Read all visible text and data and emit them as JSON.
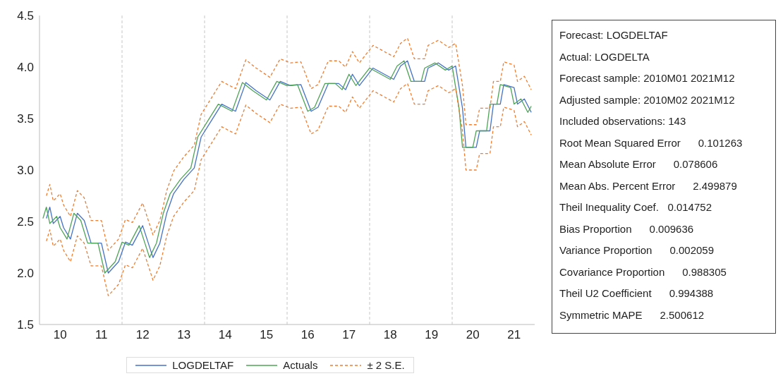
{
  "chart_data": [
    {
      "type": "line",
      "xlim": [
        "2010-01",
        "2022-01"
      ],
      "xticks": [
        {
          "value": "2010-07",
          "label": "10"
        },
        {
          "value": "2011-07",
          "label": "11"
        },
        {
          "value": "2012-07",
          "label": "12"
        },
        {
          "value": "2013-07",
          "label": "13"
        },
        {
          "value": "2014-07",
          "label": "14"
        },
        {
          "value": "2015-07",
          "label": "15"
        },
        {
          "value": "2016-07",
          "label": "16"
        },
        {
          "value": "2017-07",
          "label": "17"
        },
        {
          "value": "2018-07",
          "label": "18"
        },
        {
          "value": "2019-07",
          "label": "19"
        },
        {
          "value": "2020-07",
          "label": "20"
        },
        {
          "value": "2021-07",
          "label": "21"
        }
      ],
      "ylim": [
        1.5,
        4.5
      ],
      "yticks": [
        1.5,
        {
          "value": 2,
          "label": "2.0"
        },
        2.5,
        {
          "value": 3,
          "label": "3.0"
        },
        3.5,
        {
          "value": 4,
          "label": "4.0"
        },
        4.5
      ],
      "grid": false,
      "legend": "bottom",
      "marker": "none",
      "ref_lines": [
        {
          "axis": "x",
          "value": "2012-01",
          "label": null,
          "color": "#d9d9d9",
          "line_style": "dashed"
        },
        {
          "axis": "x",
          "value": "2014-01",
          "label": null,
          "color": "#d9d9d9",
          "line_style": "dashed"
        },
        {
          "axis": "x",
          "value": "2016-01",
          "label": null,
          "color": "#d9d9d9",
          "line_style": "dashed"
        },
        {
          "axis": "x",
          "value": "2018-01",
          "label": null,
          "color": "#d9d9d9",
          "line_style": "dashed"
        },
        {
          "axis": "x",
          "value": "2020-01",
          "label": null,
          "color": "#d9d9d9",
          "line_style": "dashed"
        }
      ],
      "series": [
        {
          "name": "LOGDELTAF",
          "color": "#4472c4",
          "line_style": "solid",
          "x": [
            "2010-03",
            "2010-04",
            "2010-05",
            "2010-07",
            "2010-08",
            "2010-10",
            "2010-12",
            "2011-02",
            "2011-04",
            "2011-07",
            "2011-09",
            "2011-12",
            "2012-02",
            "2012-04",
            "2012-07",
            "2012-10",
            "2012-12",
            "2013-02",
            "2013-04",
            "2013-07",
            "2013-10",
            "2013-12",
            "2014-03",
            "2014-06",
            "2014-10",
            "2015-01",
            "2015-04",
            "2015-08",
            "2015-11",
            "2016-02",
            "2016-05",
            "2016-08",
            "2016-10",
            "2017-01",
            "2017-04",
            "2017-06",
            "2017-08",
            "2017-10",
            "2018-02",
            "2018-08",
            "2018-10",
            "2018-12",
            "2019-02",
            "2019-05",
            "2019-06",
            "2019-09",
            "2019-12",
            "2020-02",
            "2020-04",
            "2020-05",
            "2020-08",
            "2020-09",
            "2020-12",
            "2021-01",
            "2021-03",
            "2021-04",
            "2021-07",
            "2021-08",
            "2021-10",
            "2021-12"
          ],
          "values": [
            2.53,
            2.64,
            2.48,
            2.55,
            2.44,
            2.33,
            2.58,
            2.51,
            2.29,
            2.29,
            2.0,
            2.11,
            2.3,
            2.27,
            2.46,
            2.15,
            2.29,
            2.58,
            2.77,
            2.91,
            3.02,
            3.32,
            3.48,
            3.64,
            3.57,
            3.85,
            3.77,
            3.68,
            3.86,
            3.82,
            3.83,
            3.57,
            3.61,
            3.84,
            3.84,
            3.78,
            3.93,
            3.82,
            3.99,
            3.88,
            4.01,
            4.06,
            3.86,
            3.86,
            3.99,
            4.04,
            3.97,
            4.01,
            3.6,
            3.22,
            3.22,
            3.38,
            3.38,
            3.64,
            3.64,
            3.83,
            3.8,
            3.64,
            3.69,
            3.56
          ]
        },
        {
          "name": "Actuals",
          "color": "#4ea456",
          "line_style": "solid",
          "x": [
            "2010-02",
            "2010-03",
            "2010-04",
            "2010-06",
            "2010-07",
            "2010-09",
            "2010-11",
            "2011-01",
            "2011-03",
            "2011-06",
            "2011-08",
            "2011-11",
            "2012-01",
            "2012-03",
            "2012-06",
            "2012-09",
            "2012-11",
            "2013-01",
            "2013-03",
            "2013-06",
            "2013-09",
            "2013-11",
            "2014-02",
            "2014-05",
            "2014-09",
            "2014-12",
            "2015-03",
            "2015-07",
            "2015-10",
            "2016-01",
            "2016-04",
            "2016-07",
            "2016-09",
            "2016-12",
            "2017-03",
            "2017-05",
            "2017-07",
            "2017-09",
            "2018-01",
            "2018-07",
            "2018-09",
            "2018-11",
            "2019-01",
            "2019-04",
            "2019-05",
            "2019-08",
            "2019-11",
            "2020-01",
            "2020-03",
            "2020-04",
            "2020-07",
            "2020-08",
            "2020-11",
            "2020-12",
            "2021-02",
            "2021-03",
            "2021-06",
            "2021-07",
            "2021-09",
            "2021-11",
            "2021-12"
          ],
          "values": [
            2.53,
            2.64,
            2.48,
            2.55,
            2.44,
            2.33,
            2.58,
            2.51,
            2.29,
            2.29,
            2.0,
            2.11,
            2.3,
            2.27,
            2.46,
            2.15,
            2.29,
            2.58,
            2.77,
            2.91,
            3.02,
            3.32,
            3.48,
            3.64,
            3.57,
            3.85,
            3.77,
            3.68,
            3.86,
            3.82,
            3.83,
            3.57,
            3.61,
            3.84,
            3.84,
            3.78,
            3.93,
            3.82,
            3.99,
            3.88,
            4.01,
            4.06,
            3.86,
            3.86,
            3.99,
            4.04,
            3.97,
            4.01,
            3.6,
            3.22,
            3.22,
            3.38,
            3.38,
            3.64,
            3.64,
            3.83,
            3.8,
            3.64,
            3.69,
            3.56,
            3.62
          ]
        },
        {
          "name": "± 2 S.E.",
          "color": "#ed7d31",
          "line_style": "dashed",
          "x": [
            "2010-03",
            "2010-04",
            "2010-05",
            "2010-07",
            "2010-08",
            "2010-10",
            "2010-12",
            "2011-02",
            "2011-04",
            "2011-07",
            "2011-09",
            "2011-12",
            "2012-02",
            "2012-04",
            "2012-07",
            "2012-10",
            "2012-12",
            "2013-02",
            "2013-04",
            "2013-07",
            "2013-10",
            "2013-12",
            "2014-03",
            "2014-06",
            "2014-10",
            "2015-01",
            "2015-04",
            "2015-08",
            "2015-11",
            "2016-02",
            "2016-05",
            "2016-08",
            "2016-10",
            "2017-01",
            "2017-04",
            "2017-06",
            "2017-08",
            "2017-10",
            "2018-02",
            "2018-08",
            "2018-10",
            "2018-12",
            "2019-02",
            "2019-05",
            "2019-06",
            "2019-09",
            "2019-12",
            "2020-02",
            "2020-04",
            "2020-05",
            "2020-08",
            "2020-09",
            "2020-12",
            "2021-01",
            "2021-03",
            "2021-04",
            "2021-07",
            "2021-08",
            "2021-10",
            "2021-12"
          ],
          "values": [
            2.75,
            2.86,
            2.7,
            2.77,
            2.66,
            2.55,
            2.8,
            2.73,
            2.51,
            2.51,
            2.22,
            2.33,
            2.52,
            2.49,
            2.68,
            2.37,
            2.51,
            2.8,
            2.99,
            3.13,
            3.24,
            3.54,
            3.7,
            3.86,
            3.79,
            4.07,
            3.99,
            3.9,
            4.08,
            4.04,
            4.05,
            3.79,
            3.83,
            4.06,
            4.06,
            4.0,
            4.15,
            4.04,
            4.21,
            4.1,
            4.23,
            4.28,
            4.08,
            4.08,
            4.21,
            4.26,
            4.19,
            4.23,
            3.82,
            3.44,
            3.44,
            3.6,
            3.6,
            3.86,
            3.86,
            4.05,
            4.02,
            3.86,
            3.91,
            3.78
          ]
        },
        {
          "color": "#ed7d31",
          "line_style": "dashed",
          "x": [
            "2010-03",
            "2010-04",
            "2010-05",
            "2010-07",
            "2010-08",
            "2010-10",
            "2010-12",
            "2011-02",
            "2011-04",
            "2011-07",
            "2011-09",
            "2011-12",
            "2012-02",
            "2012-04",
            "2012-07",
            "2012-10",
            "2012-12",
            "2013-02",
            "2013-04",
            "2013-07",
            "2013-10",
            "2013-12",
            "2014-03",
            "2014-06",
            "2014-10",
            "2015-01",
            "2015-04",
            "2015-08",
            "2015-11",
            "2016-02",
            "2016-05",
            "2016-08",
            "2016-10",
            "2017-01",
            "2017-04",
            "2017-06",
            "2017-08",
            "2017-10",
            "2018-02",
            "2018-08",
            "2018-10",
            "2018-12",
            "2019-02",
            "2019-05",
            "2019-06",
            "2019-09",
            "2019-12",
            "2020-02",
            "2020-04",
            "2020-05",
            "2020-08",
            "2020-09",
            "2020-12",
            "2021-01",
            "2021-03",
            "2021-04",
            "2021-07",
            "2021-08",
            "2021-10",
            "2021-12"
          ],
          "values": [
            2.31,
            2.42,
            2.26,
            2.33,
            2.22,
            2.11,
            2.36,
            2.29,
            2.07,
            2.07,
            1.78,
            1.89,
            2.08,
            2.05,
            2.24,
            1.93,
            2.07,
            2.36,
            2.55,
            2.69,
            2.8,
            3.1,
            3.26,
            3.42,
            3.35,
            3.63,
            3.55,
            3.46,
            3.64,
            3.6,
            3.61,
            3.35,
            3.39,
            3.62,
            3.62,
            3.56,
            3.71,
            3.6,
            3.77,
            3.66,
            3.79,
            3.84,
            3.64,
            3.64,
            3.77,
            3.82,
            3.75,
            3.79,
            3.38,
            3.0,
            3.0,
            3.16,
            3.16,
            3.42,
            3.42,
            3.61,
            3.58,
            3.42,
            3.47,
            3.34
          ]
        }
      ]
    },
    {
      "type": "other",
      "annotations": [
        "Forecast: LOGDELTAF",
        "Actual: LOGDELTA",
        "Forecast sample: 2010M01 2021M12",
        "Adjusted sample: 2010M02 2021M12",
        "Included observations: 143",
        "Root Mean Squared Error      0.101263",
        "Mean Absolute Error      0.078606",
        "Mean Abs. Percent Error      2.499879",
        "Theil Inequality Coef.   0.014752",
        "Bias Proportion      0.009636",
        "Variance Proportion      0.002059",
        "Covariance Proportion      0.988305",
        "Theil U2 Coefficient      0.994388",
        "Symmetric MAPE      2.500612"
      ]
    }
  ]
}
